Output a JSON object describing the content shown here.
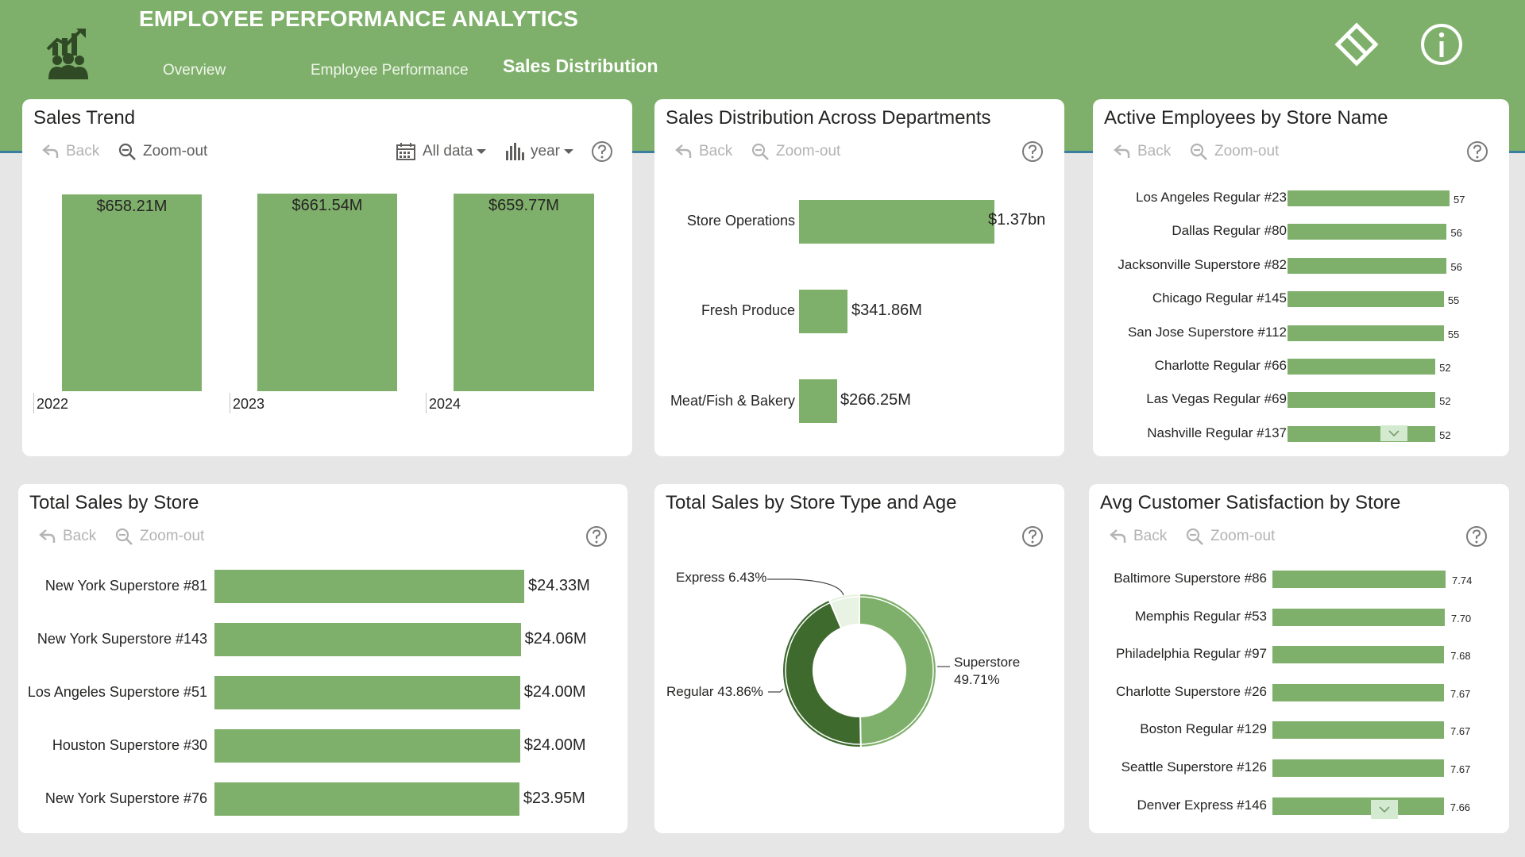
{
  "app": {
    "title": "EMPLOYEE PERFORMANCE ANALYTICS",
    "nav": [
      "Overview",
      "Employee Performance",
      "Sales Distribution"
    ],
    "active_tab": "Sales Distribution"
  },
  "icons": {
    "logo": "analytics-people-icon",
    "eraser": "eraser-icon",
    "info": "info-icon",
    "back": "back-arrow-icon",
    "zoom": "zoom-out-icon",
    "help": "help-icon",
    "calendar": "calendar-icon",
    "bars": "bar-chart-icon"
  },
  "colors": {
    "header": "#7fb06b",
    "bar": "#7fb06b",
    "donut_regular": "#3f6a2e",
    "donut_express": "#e8f3e3"
  },
  "controls": {
    "back": "Back",
    "zoom_out": "Zoom-out",
    "all_data": "All data",
    "year": "year"
  },
  "sales_trend": {
    "title": "Sales Trend",
    "chart_data": {
      "type": "bar",
      "categories": [
        "2022",
        "2023",
        "2024"
      ],
      "values": [
        658.21,
        661.54,
        659.77
      ],
      "data_labels": [
        "$658.21M",
        "$661.54M",
        "$659.77M"
      ],
      "ylabel_unit": "$M"
    }
  },
  "dept_sales": {
    "title": "Sales Distribution Across Departments",
    "chart_data": {
      "type": "bar",
      "orientation": "horizontal",
      "categories": [
        "Store Operations",
        "Fresh Produce",
        "Meat/Fish & Bakery"
      ],
      "values": [
        1370,
        341.86,
        266.25
      ],
      "data_labels": [
        "$1.37bn",
        "$341.86M",
        "$266.25M"
      ],
      "unit": "$M"
    }
  },
  "active_employees": {
    "title": "Active Employees by Store Name",
    "chart_data": {
      "type": "bar",
      "orientation": "horizontal",
      "categories": [
        "Los Angeles Regular #23",
        "Dallas Regular #80",
        "Jacksonville Superstore #82",
        "Chicago Regular #145",
        "San Jose Superstore #112",
        "Charlotte Regular #66",
        "Las Vegas Regular #69",
        "Nashville Regular #137"
      ],
      "values": [
        57,
        56,
        56,
        55,
        55,
        52,
        52,
        52
      ],
      "data_labels": [
        "57",
        "56",
        "56",
        "55",
        "55",
        "52",
        "52",
        "52"
      ]
    }
  },
  "total_sales_store": {
    "title": "Total Sales by Store",
    "chart_data": {
      "type": "bar",
      "orientation": "horizontal",
      "categories": [
        "New York Superstore #81",
        "New York Superstore #143",
        "Los Angeles Superstore #51",
        "Houston Superstore #30",
        "New York Superstore #76"
      ],
      "values": [
        24.33,
        24.06,
        24.0,
        24.0,
        23.95
      ],
      "data_labels": [
        "$24.33M",
        "$24.06M",
        "$24.00M",
        "$24.00M",
        "$23.95M"
      ],
      "unit": "$M"
    }
  },
  "store_type": {
    "title": "Total Sales by Store Type and Age",
    "chart_data": {
      "type": "pie",
      "donut": true,
      "categories": [
        "Superstore",
        "Regular",
        "Express"
      ],
      "values": [
        49.71,
        43.86,
        6.43
      ],
      "labels": {
        "express": "Express 6.43%",
        "regular": "Regular 43.86%",
        "superstore_name": "Superstore",
        "superstore_pct": "49.71%"
      },
      "colors": [
        "#7fb06b",
        "#3f6a2e",
        "#e8f3e3"
      ]
    }
  },
  "csat": {
    "title": "Avg Customer Satisfaction by Store",
    "chart_data": {
      "type": "bar",
      "orientation": "horizontal",
      "categories": [
        "Baltimore Superstore #86",
        "Memphis Regular #53",
        "Philadelphia Regular #97",
        "Charlotte Superstore #26",
        "Boston Regular #129",
        "Seattle Superstore #126",
        "Denver Express #146"
      ],
      "values": [
        7.74,
        7.7,
        7.68,
        7.67,
        7.67,
        7.67,
        7.66
      ],
      "data_labels": [
        "7.74",
        "7.70",
        "7.68",
        "7.67",
        "7.67",
        "7.67",
        "7.66"
      ]
    }
  }
}
